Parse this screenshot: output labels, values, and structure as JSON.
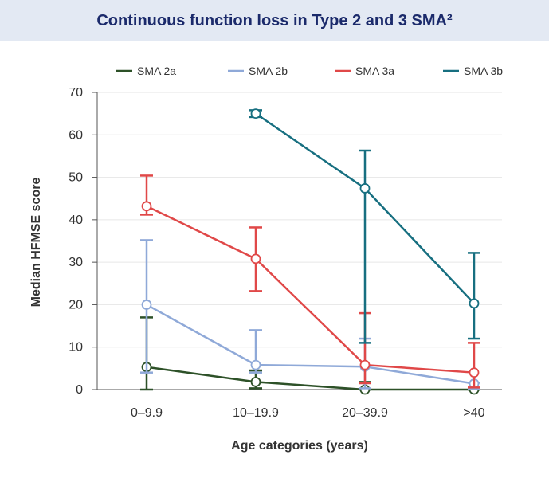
{
  "header": {
    "title": "Continuous function loss in Type 2 and 3 SMA²"
  },
  "chart_data": {
    "type": "line",
    "title": "Continuous function loss in Type 2 and 3 SMA²",
    "xlabel": "Age categories (years)",
    "ylabel": "Median HFMSE score",
    "categories": [
      "0–9.9",
      "10–19.9",
      "20–39.9",
      ">40"
    ],
    "ylim": [
      0,
      70
    ],
    "yticks": [
      0,
      10,
      20,
      30,
      40,
      50,
      60,
      70
    ],
    "grid": "horizontal",
    "legend_position": "top",
    "error_bars": true,
    "series": [
      {
        "name": "SMA 2a",
        "color": "#2d5128",
        "values": [
          5.3,
          1.8,
          0,
          0
        ],
        "err_low": [
          0,
          0.3,
          0,
          0
        ],
        "err_high": [
          17,
          4.5,
          1.8,
          0
        ]
      },
      {
        "name": "SMA 2b",
        "color": "#8fa9d8",
        "values": [
          20,
          5.8,
          5.4,
          1.4
        ],
        "err_low": [
          4,
          4,
          0.3,
          0.2
        ],
        "err_high": [
          35.2,
          14,
          12,
          1.6
        ]
      },
      {
        "name": "SMA 3a",
        "color": "#e04848",
        "values": [
          43.2,
          30.8,
          5.8,
          4
        ],
        "err_low": [
          41.2,
          23.2,
          1.5,
          0.5
        ],
        "err_high": [
          50.4,
          38.2,
          18,
          11
        ]
      },
      {
        "name": "SMA 3b",
        "color": "#176f80",
        "values": [
          null,
          65,
          47.4,
          20.3
        ],
        "err_low": [
          null,
          64.2,
          11,
          12
        ],
        "err_high": [
          null,
          65.8,
          56.3,
          32.2
        ]
      }
    ]
  }
}
